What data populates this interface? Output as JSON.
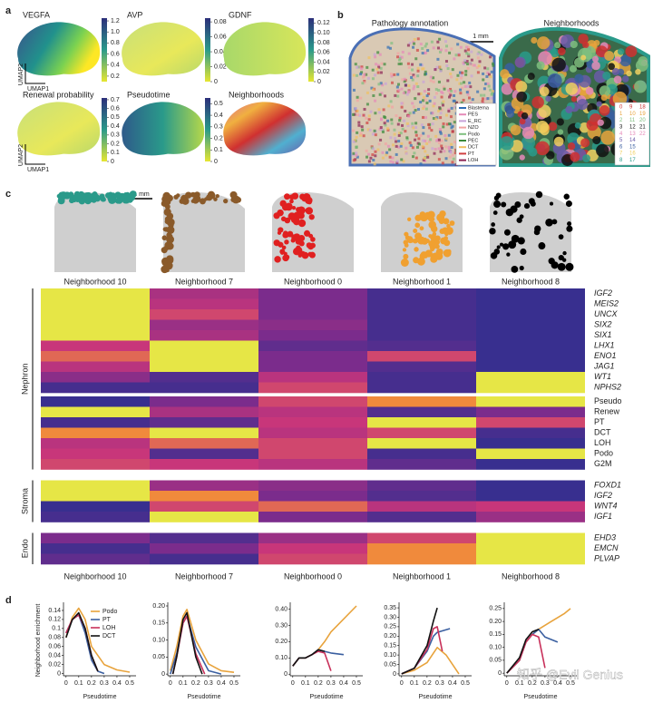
{
  "panel_a": {
    "label": "a",
    "x_axis": "UMAP1",
    "y_axis": "UMAP2",
    "plots": [
      {
        "title": "VEGFA",
        "lim": [
          0.1,
          1.25
        ],
        "ticks": [
          0.2,
          0.4,
          0.6,
          0.8,
          {
            "value": 1,
            "label": "1.0"
          },
          1.2
        ]
      },
      {
        "title": "AVP",
        "lim": [
          0,
          0.085
        ],
        "ticks": [
          0,
          0.02,
          0.04,
          0.06,
          0.08
        ]
      },
      {
        "title": "GDNF",
        "lim": [
          0,
          0.13
        ],
        "ticks": [
          0,
          0.02,
          0.04,
          0.06,
          0.08,
          {
            "value": 0.1,
            "label": "0.10"
          },
          0.12
        ]
      },
      {
        "title": "Renewal probability",
        "lim": [
          0,
          0.72
        ],
        "ticks": [
          0,
          0.1,
          0.2,
          0.3,
          0.4,
          0.5,
          0.6,
          0.7
        ]
      },
      {
        "title": "Pseudotime",
        "lim": [
          0,
          0.55
        ],
        "ticks": [
          0,
          0.1,
          0.2,
          0.3,
          0.4,
          0.5
        ]
      },
      {
        "title": "Neighborhoods"
      }
    ]
  },
  "panel_b": {
    "label": "b",
    "titles": [
      "Pathology annotation",
      "Neighborhoods"
    ],
    "scale_bar": "1 mm",
    "legend": [
      {
        "name": "Blastema",
        "color": "#2f6db5"
      },
      {
        "name": "PES",
        "color": "#e58ab8"
      },
      {
        "name": "E_RC",
        "color": "#c8a2d8"
      },
      {
        "name": "NZO",
        "color": "#f2a3a3"
      },
      {
        "name": "Podo",
        "color": "#7fbf7f"
      },
      {
        "name": "PEC",
        "color": "#3a8a3a"
      },
      {
        "name": "DCT",
        "color": "#f0c060"
      },
      {
        "name": "PT",
        "color": "#d04040"
      },
      {
        "name": "LOH",
        "color": "#8b2252"
      }
    ],
    "neighborhood_ids": [
      0,
      1,
      2,
      3,
      4,
      5,
      6,
      7,
      8,
      9,
      10,
      11,
      12,
      13,
      14,
      15,
      16,
      17,
      18,
      19,
      20,
      21,
      22
    ]
  },
  "panel_c": {
    "label": "c",
    "scale_bar": "1 mm",
    "columns": [
      "Neighborhood 10",
      "Neighborhood 7",
      "Neighborhood 0",
      "Neighborhood 1",
      "Neighborhood 8"
    ],
    "groups": [
      {
        "name": "Nephron",
        "blocks": [
          [
            {
              "label": "IGF2",
              "values": [
                1,
                0.45,
                0.3,
                0.1,
                0.05
              ]
            },
            {
              "label": "MEIS2",
              "values": [
                1,
                0.5,
                0.3,
                0.1,
                0.05
              ]
            },
            {
              "label": "UNCX",
              "values": [
                1,
                0.6,
                0.3,
                0.1,
                0.05
              ]
            },
            {
              "label": "SIX2",
              "values": [
                1,
                0.4,
                0.35,
                0.1,
                0.05
              ]
            },
            {
              "label": "SIX1",
              "values": [
                1,
                0.45,
                0.3,
                0.1,
                0.05
              ]
            },
            {
              "label": "LHX1",
              "values": [
                0.55,
                1,
                0.2,
                0.15,
                0.05
              ]
            },
            {
              "label": "ENO1",
              "values": [
                0.7,
                1,
                0.3,
                0.6,
                0.05
              ]
            },
            {
              "label": "JAG1",
              "values": [
                0.5,
                1,
                0.3,
                0.15,
                0.05
              ]
            },
            {
              "label": "WT1",
              "values": [
                0.35,
                0.15,
                0.5,
                0.1,
                1
              ]
            },
            {
              "label": "NPHS2",
              "values": [
                0.1,
                0.1,
                0.6,
                0.1,
                1
              ]
            }
          ],
          [
            {
              "label": "Pseudo",
              "values": [
                0.05,
                0.3,
                0.6,
                0.8,
                1
              ]
            },
            {
              "label": "Renew",
              "values": [
                1,
                0.45,
                0.5,
                0.15,
                0.3
              ]
            },
            {
              "label": "PT",
              "values": [
                0.1,
                0.2,
                0.55,
                1,
                0.6
              ]
            },
            {
              "label": "DCT",
              "values": [
                0.8,
                1,
                0.5,
                0.6,
                0.1
              ]
            },
            {
              "label": "LOH",
              "values": [
                0.5,
                0.7,
                0.6,
                1,
                0.05
              ]
            },
            {
              "label": "Podo",
              "values": [
                0.55,
                0.15,
                0.6,
                0.1,
                1
              ]
            },
            {
              "label": "G2M",
              "values": [
                0.6,
                0.55,
                0.5,
                0.2,
                0.05
              ]
            }
          ]
        ]
      },
      {
        "name": "Stroma",
        "blocks": [
          [
            {
              "label": "FOXD1",
              "values": [
                1,
                0.4,
                0.35,
                0.2,
                0.05
              ]
            },
            {
              "label": "IGF2",
              "values": [
                1,
                0.8,
                0.3,
                0.15,
                0.05
              ]
            },
            {
              "label": "WNT4",
              "values": [
                0.05,
                0.6,
                0.7,
                0.5,
                0.55
              ]
            },
            {
              "label": "IGF1",
              "values": [
                0.1,
                1,
                0.3,
                0.15,
                0.4
              ]
            }
          ]
        ]
      },
      {
        "name": "Endo",
        "blocks": [
          [
            {
              "label": "EHD3",
              "values": [
                0.3,
                0.15,
                0.4,
                0.6,
                1
              ]
            },
            {
              "label": "EMCN",
              "values": [
                0.1,
                0.3,
                0.55,
                0.8,
                1
              ]
            },
            {
              "label": "PLVAP",
              "values": [
                0.2,
                0.1,
                0.6,
                0.8,
                1
              ]
            }
          ]
        ]
      }
    ]
  },
  "panel_d": {
    "label": "d",
    "y_label": "Neighborhood enrichment",
    "x_label": "Pseudotime",
    "series": [
      {
        "name": "Podo",
        "color": "#e8a33c"
      },
      {
        "name": "PT",
        "color": "#3a5fa0"
      },
      {
        "name": "LOH",
        "color": "#c8305a"
      },
      {
        "name": "DCT",
        "color": "#111111"
      }
    ],
    "xlim": [
      -0.02,
      0.55
    ],
    "xticks": [
      0,
      0.1,
      0.2,
      0.3,
      0.4,
      0.5
    ],
    "charts": [
      {
        "ylim": [
          -0.005,
          0.15
        ],
        "yticks": [
          0,
          0.02,
          0.04,
          0.06,
          0.08,
          0.1,
          0.12,
          0.14
        ],
        "lines": [
          {
            "x": [
              0,
              0.05,
              0.1,
              0.15,
              0.2,
              0.3,
              0.4,
              0.5
            ],
            "values": [
              0.08,
              0.125,
              0.145,
              0.12,
              0.06,
              0.02,
              0.008,
              0.003
            ]
          },
          {
            "x": [
              0,
              0.05,
              0.1,
              0.15,
              0.2,
              0.25,
              0.3
            ],
            "values": [
              0.09,
              0.12,
              0.13,
              0.09,
              0.03,
              0.005,
              0
            ]
          },
          {
            "x": [
              0,
              0.05,
              0.1,
              0.15,
              0.2,
              0.25
            ],
            "values": [
              0.09,
              0.12,
              0.13,
              0.1,
              0.04,
              0.005
            ]
          },
          {
            "x": [
              0,
              0.05,
              0.1,
              0.15,
              0.2,
              0.25
            ],
            "values": [
              0.08,
              0.12,
              0.135,
              0.1,
              0.04,
              0.005
            ]
          }
        ]
      },
      {
        "ylim": [
          -0.005,
          0.2
        ],
        "yticks": [
          0,
          0.05,
          {
            "value": 0.1,
            "label": "0.10"
          },
          0.15,
          {
            "value": 0.2,
            "label": "0.20"
          }
        ],
        "lines": [
          {
            "x": [
              0,
              0.05,
              0.1,
              0.13,
              0.2,
              0.3,
              0.4,
              0.5
            ],
            "values": [
              0.01,
              0.08,
              0.17,
              0.19,
              0.1,
              0.03,
              0.01,
              0.005
            ]
          },
          {
            "x": [
              0,
              0.05,
              0.1,
              0.13,
              0.2,
              0.3,
              0.4
            ],
            "values": [
              0,
              0.06,
              0.15,
              0.17,
              0.08,
              0.01,
              0
            ]
          },
          {
            "x": [
              0.02,
              0.05,
              0.1,
              0.13,
              0.2,
              0.27
            ],
            "values": [
              0,
              0.05,
              0.15,
              0.17,
              0.06,
              0
            ]
          },
          {
            "x": [
              0.02,
              0.05,
              0.1,
              0.13,
              0.2,
              0.25
            ],
            "values": [
              0,
              0.05,
              0.16,
              0.18,
              0.05,
              0
            ]
          }
        ]
      },
      {
        "ylim": [
          -0.01,
          0.42
        ],
        "yticks": [
          0,
          {
            "value": 0.1,
            "label": "0.10"
          },
          {
            "value": 0.2,
            "label": "0.20"
          },
          {
            "value": 0.3,
            "label": "0.30"
          },
          {
            "value": 0.4,
            "label": "0.40"
          }
        ],
        "lines": [
          {
            "x": [
              0,
              0.05,
              0.1,
              0.15,
              0.2,
              0.25,
              0.3,
              0.5
            ],
            "values": [
              0.05,
              0.1,
              0.1,
              0.12,
              0.15,
              0.2,
              0.26,
              0.42
            ]
          },
          {
            "x": [
              0,
              0.05,
              0.1,
              0.15,
              0.2,
              0.25,
              0.3,
              0.4
            ],
            "values": [
              0.05,
              0.1,
              0.1,
              0.12,
              0.15,
              0.14,
              0.13,
              0.12
            ]
          },
          {
            "x": [
              0,
              0.05,
              0.1,
              0.15,
              0.2,
              0.25,
              0.3
            ],
            "values": [
              0.05,
              0.1,
              0.1,
              0.12,
              0.14,
              0.13,
              0.02
            ]
          },
          {
            "x": [
              0,
              0.05,
              0.1,
              0.15,
              0.2,
              0.25
            ],
            "values": [
              0.05,
              0.1,
              0.1,
              0.12,
              0.15,
              0.14
            ]
          }
        ]
      },
      {
        "ylim": [
          -0.01,
          0.36
        ],
        "yticks": [
          0,
          0.05,
          {
            "value": 0.1,
            "label": "0.10"
          },
          0.15,
          {
            "value": 0.2,
            "label": "0.20"
          },
          0.25,
          {
            "value": 0.3,
            "label": "0.30"
          },
          0.35
        ],
        "lines": [
          {
            "x": [
              0,
              0.1,
              0.2,
              0.28,
              0.35,
              0.45
            ],
            "values": [
              0,
              0.02,
              0.06,
              0.14,
              0.1,
              0
            ]
          },
          {
            "x": [
              0,
              0.1,
              0.2,
              0.25,
              0.28,
              0.38
            ],
            "values": [
              0,
              0.03,
              0.12,
              0.2,
              0.22,
              0.24
            ]
          },
          {
            "x": [
              0,
              0.1,
              0.2,
              0.25,
              0.28,
              0.32
            ],
            "values": [
              0,
              0.03,
              0.13,
              0.24,
              0.25,
              0.12
            ]
          },
          {
            "x": [
              0,
              0.1,
              0.2,
              0.25,
              0.28
            ],
            "values": [
              0,
              0.03,
              0.15,
              0.28,
              0.35
            ]
          }
        ]
      },
      {
        "ylim": [
          -0.01,
          0.26
        ],
        "yticks": [
          0,
          0.05,
          {
            "value": 0.1,
            "label": "0.10"
          },
          0.15,
          {
            "value": 0.2,
            "label": "0.20"
          },
          0.25
        ],
        "lines": [
          {
            "x": [
              0,
              0.1,
              0.15,
              0.2,
              0.25,
              0.35,
              0.45,
              0.5
            ],
            "values": [
              0,
              0.05,
              0.12,
              0.15,
              0.17,
              0.2,
              0.23,
              0.25
            ]
          },
          {
            "x": [
              0,
              0.1,
              0.15,
              0.2,
              0.25,
              0.3,
              0.4
            ],
            "values": [
              0,
              0.05,
              0.12,
              0.15,
              0.17,
              0.14,
              0.12
            ]
          },
          {
            "x": [
              0,
              0.1,
              0.15,
              0.2,
              0.25,
              0.3
            ],
            "values": [
              0,
              0.05,
              0.12,
              0.15,
              0.14,
              0.02
            ]
          },
          {
            "x": [
              0,
              0.1,
              0.15,
              0.2,
              0.25
            ],
            "values": [
              0,
              0.06,
              0.13,
              0.16,
              0.17
            ]
          }
        ]
      }
    ]
  },
  "watermark": "知乎 @Evil Genius"
}
